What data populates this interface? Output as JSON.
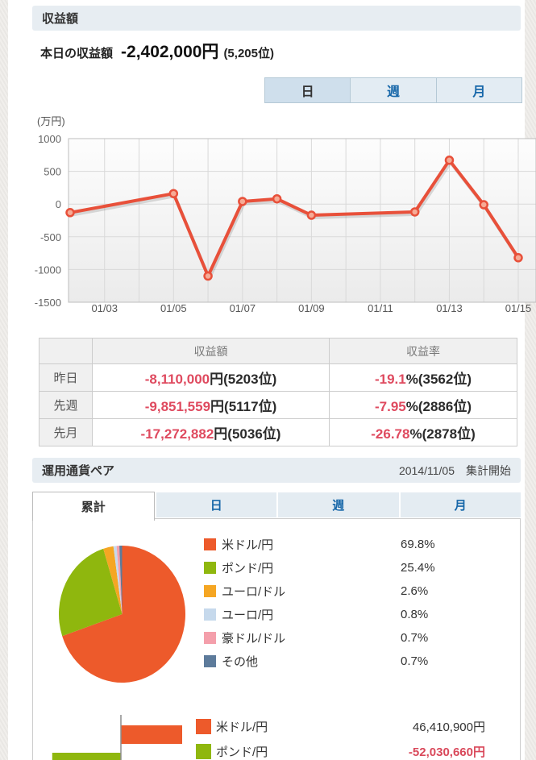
{
  "page": {
    "section1": {
      "title": "収益額",
      "today_label": "本日の収益額",
      "today_value": "-2,402,000円",
      "today_rank": "(5,205位)",
      "tabs": [
        {
          "label": "日",
          "active": true
        },
        {
          "label": "週",
          "active": false
        },
        {
          "label": "月",
          "active": false
        }
      ]
    },
    "table": {
      "headers": [
        "",
        "収益額",
        "収益率"
      ],
      "rows": [
        {
          "label": "昨日",
          "amount": "-8,110,000",
          "amount_suffix": "円(5203位)",
          "rate": "-19.1",
          "rate_suffix": "%(3562位)"
        },
        {
          "label": "先週",
          "amount": "-9,851,559",
          "amount_suffix": "円(5117位)",
          "rate": "-7.95",
          "rate_suffix": "%(2886位)"
        },
        {
          "label": "先月",
          "amount": "-17,272,882",
          "amount_suffix": "円(5036位)",
          "rate": "-26.78",
          "rate_suffix": "%(2878位)"
        }
      ]
    },
    "section2": {
      "title": "運用通貨ペア",
      "date_note": "2014/11/05　集計開始",
      "tabs": [
        {
          "label": "累計",
          "active": true
        },
        {
          "label": "日",
          "active": false
        },
        {
          "label": "週",
          "active": false
        },
        {
          "label": "月",
          "active": false
        }
      ]
    }
  },
  "chart_data": [
    {
      "type": "line",
      "unit_label": "(万円)",
      "line_color": "#e8503a",
      "marker_fill": "#f6ab96",
      "ylim": [
        -1500,
        1000
      ],
      "yticks": [
        1000,
        500,
        0,
        -500,
        -1000,
        -1500
      ],
      "days": [
        "01/02",
        "01/03",
        "01/04",
        "01/05",
        "01/06",
        "01/07",
        "01/08",
        "01/09",
        "01/10",
        "01/11",
        "01/12",
        "01/13",
        "01/14",
        "01/15"
      ],
      "x_ticks": [
        "01/03",
        "01/05",
        "01/07",
        "01/09",
        "01/11",
        "01/13",
        "01/15"
      ],
      "points": [
        {
          "date": "01/02",
          "value": -130
        },
        {
          "date": "01/05",
          "value": 160
        },
        {
          "date": "01/06",
          "value": -1100
        },
        {
          "date": "01/07",
          "value": 40
        },
        {
          "date": "01/08",
          "value": 80
        },
        {
          "date": "01/09",
          "value": -170
        },
        {
          "date": "01/12",
          "value": -120
        },
        {
          "date": "01/13",
          "value": 670
        },
        {
          "date": "01/14",
          "value": -10
        },
        {
          "date": "01/15",
          "value": -820
        }
      ]
    },
    {
      "type": "pie",
      "labels": [
        "米ドル/円",
        "ポンド/円",
        "ユーロ/ドル",
        "ユーロ/円",
        "豪ドル/ドル",
        "その他"
      ],
      "values": [
        69.8,
        25.4,
        2.6,
        0.8,
        0.7,
        0.7
      ],
      "percent_labels": [
        "69.8%",
        "25.4%",
        "2.6%",
        "0.8%",
        "0.7%",
        "0.7%"
      ],
      "colors": [
        "#ed5a2b",
        "#8fb70e",
        "#f5a623",
        "#c6d9ec",
        "#f49fab",
        "#5d7b9b"
      ]
    },
    {
      "type": "bar",
      "categories": [
        "米ドル/円",
        "ポンド/円"
      ],
      "values": [
        46410900,
        -52030660
      ],
      "value_labels": [
        "46,410,900円",
        "-52,030,660円"
      ],
      "colors": [
        "#ed5a2b",
        "#8fb70e"
      ]
    }
  ]
}
